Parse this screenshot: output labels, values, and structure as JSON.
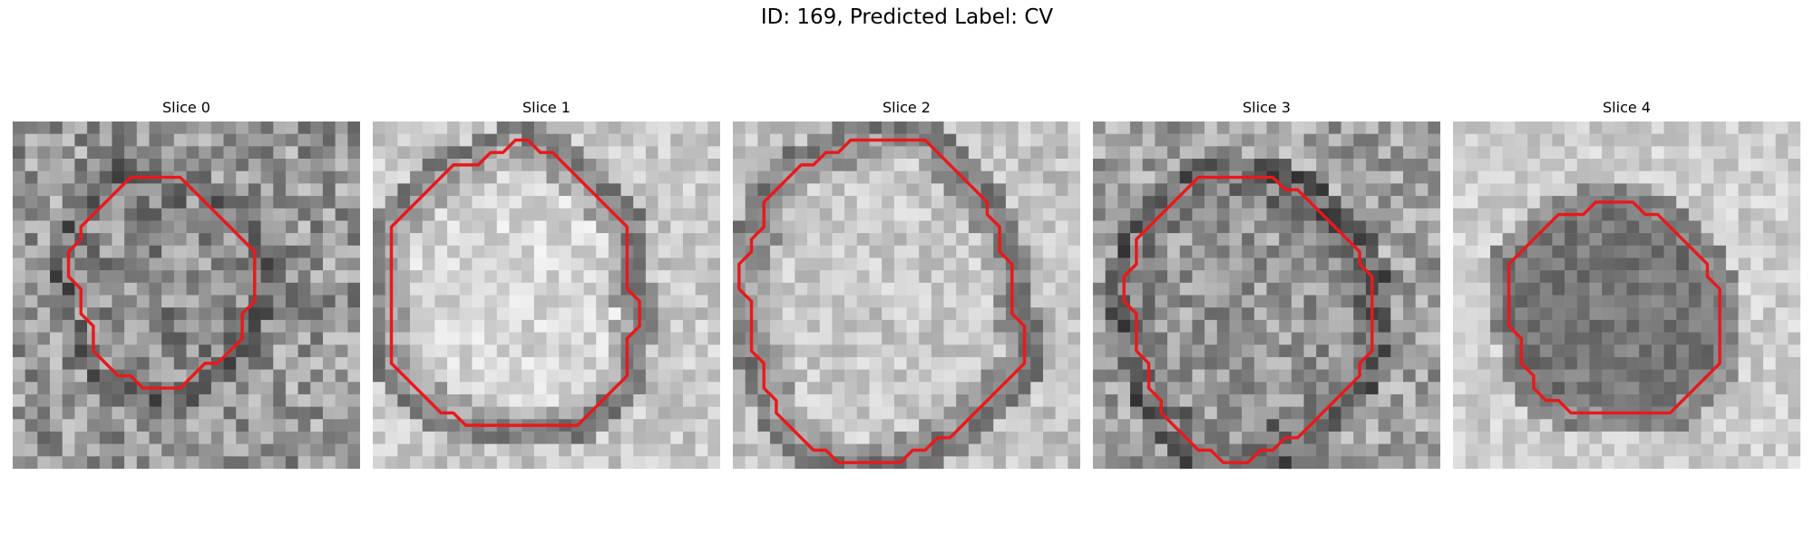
{
  "figure": {
    "title": "ID: 169, Predicted Label: CV"
  },
  "slices": [
    {
      "title": "Slice 0",
      "contour": [
        [
          10.5,
          4.5
        ],
        [
          13.5,
          4.5
        ],
        [
          14.5,
          5.5
        ],
        [
          15.5,
          6.5
        ],
        [
          16.5,
          7.5
        ],
        [
          17.5,
          8.5
        ],
        [
          18.5,
          9.5
        ],
        [
          19.5,
          10.5
        ],
        [
          19.5,
          13.5
        ],
        [
          19.5,
          14.5
        ],
        [
          18.5,
          15.5
        ],
        [
          18.5,
          17.5
        ],
        [
          17.5,
          18.5
        ],
        [
          16.5,
          19.5
        ],
        [
          15.5,
          19.5
        ],
        [
          14.5,
          20.5
        ],
        [
          13.5,
          21.5
        ],
        [
          10.5,
          21.5
        ],
        [
          9.5,
          20.5
        ],
        [
          8.5,
          20.5
        ],
        [
          7.5,
          19.5
        ],
        [
          6.5,
          18.5
        ],
        [
          6.5,
          16.5
        ],
        [
          5.5,
          15.5
        ],
        [
          5.5,
          14.5
        ],
        [
          5.5,
          13.5
        ],
        [
          4.5,
          12.5
        ],
        [
          4.5,
          10.5
        ],
        [
          5.5,
          9.5
        ],
        [
          5.5,
          8.5
        ],
        [
          6.5,
          7.5
        ],
        [
          7.5,
          6.5
        ],
        [
          8.5,
          5.5
        ],
        [
          9.5,
          4.5
        ]
      ]
    },
    {
      "title": "Slice 1",
      "contour": [
        [
          11.5,
          1.5
        ],
        [
          12.5,
          1.5
        ],
        [
          13.5,
          2.5
        ],
        [
          14.5,
          2.5
        ],
        [
          15.5,
          3.5
        ],
        [
          16.5,
          4.5
        ],
        [
          17.5,
          5.5
        ],
        [
          18.5,
          6.5
        ],
        [
          19.5,
          7.5
        ],
        [
          20.5,
          8.5
        ],
        [
          20.5,
          13.5
        ],
        [
          21.5,
          14.5
        ],
        [
          21.5,
          16.5
        ],
        [
          20.5,
          17.5
        ],
        [
          20.5,
          20.5
        ],
        [
          19.5,
          21.5
        ],
        [
          18.5,
          22.5
        ],
        [
          17.5,
          23.5
        ],
        [
          16.5,
          24.5
        ],
        [
          7.5,
          24.5
        ],
        [
          6.5,
          23.5
        ],
        [
          5.5,
          23.5
        ],
        [
          4.5,
          22.5
        ],
        [
          3.5,
          21.5
        ],
        [
          2.5,
          20.5
        ],
        [
          1.5,
          19.5
        ],
        [
          1.5,
          8.5
        ],
        [
          2.5,
          7.5
        ],
        [
          3.5,
          6.5
        ],
        [
          4.5,
          5.5
        ],
        [
          5.5,
          4.5
        ],
        [
          6.5,
          3.5
        ],
        [
          8.5,
          3.5
        ],
        [
          9.5,
          2.5
        ],
        [
          10.5,
          2.5
        ]
      ]
    },
    {
      "title": "Slice 2",
      "contour": [
        [
          9.5,
          1.5
        ],
        [
          15.5,
          1.5
        ],
        [
          16.5,
          2.5
        ],
        [
          17.5,
          3.5
        ],
        [
          18.5,
          4.5
        ],
        [
          19.5,
          5.5
        ],
        [
          20.5,
          6.5
        ],
        [
          20.5,
          7.5
        ],
        [
          21.5,
          8.5
        ],
        [
          21.5,
          10.5
        ],
        [
          22.5,
          11.5
        ],
        [
          22.5,
          15.5
        ],
        [
          23.5,
          16.5
        ],
        [
          23.5,
          19.5
        ],
        [
          22.5,
          20.5
        ],
        [
          21.5,
          21.5
        ],
        [
          20.5,
          22.5
        ],
        [
          19.5,
          23.5
        ],
        [
          18.5,
          24.5
        ],
        [
          17.5,
          25.5
        ],
        [
          16.5,
          25.5
        ],
        [
          15.5,
          26.5
        ],
        [
          14.5,
          26.5
        ],
        [
          13.5,
          27.5
        ],
        [
          8.5,
          27.5
        ],
        [
          7.5,
          26.5
        ],
        [
          6.5,
          26.5
        ],
        [
          5.5,
          25.5
        ],
        [
          4.5,
          24.5
        ],
        [
          3.5,
          23.5
        ],
        [
          3.5,
          22.5
        ],
        [
          2.5,
          21.5
        ],
        [
          2.5,
          19.5
        ],
        [
          1.5,
          18.5
        ],
        [
          1.5,
          15.5
        ],
        [
          1.5,
          14.5
        ],
        [
          0.5,
          13.5
        ],
        [
          0.5,
          11.5
        ],
        [
          1.5,
          10.5
        ],
        [
          1.5,
          9.5
        ],
        [
          2.5,
          8.5
        ],
        [
          2.5,
          6.5
        ],
        [
          3.5,
          5.5
        ],
        [
          4.5,
          4.5
        ],
        [
          5.5,
          3.5
        ],
        [
          6.5,
          3.5
        ],
        [
          7.5,
          2.5
        ],
        [
          8.5,
          2.5
        ]
      ]
    },
    {
      "title": "Slice 3",
      "contour": [
        [
          8.5,
          4.5
        ],
        [
          14.5,
          4.5
        ],
        [
          15.5,
          5.5
        ],
        [
          16.5,
          5.5
        ],
        [
          17.5,
          6.5
        ],
        [
          18.5,
          7.5
        ],
        [
          19.5,
          8.5
        ],
        [
          20.5,
          9.5
        ],
        [
          21.5,
          10.5
        ],
        [
          21.5,
          11.5
        ],
        [
          22.5,
          12.5
        ],
        [
          22.5,
          18.5
        ],
        [
          21.5,
          19.5
        ],
        [
          21.5,
          20.5
        ],
        [
          20.5,
          21.5
        ],
        [
          19.5,
          22.5
        ],
        [
          18.5,
          23.5
        ],
        [
          17.5,
          24.5
        ],
        [
          16.5,
          25.5
        ],
        [
          15.5,
          25.5
        ],
        [
          14.5,
          26.5
        ],
        [
          13.5,
          26.5
        ],
        [
          12.5,
          27.5
        ],
        [
          10.5,
          27.5
        ],
        [
          9.5,
          26.5
        ],
        [
          8.5,
          26.5
        ],
        [
          7.5,
          25.5
        ],
        [
          6.5,
          24.5
        ],
        [
          5.5,
          23.5
        ],
        [
          5.5,
          22.5
        ],
        [
          4.5,
          21.5
        ],
        [
          4.5,
          19.5
        ],
        [
          3.5,
          18.5
        ],
        [
          3.5,
          16.5
        ],
        [
          3.5,
          15.5
        ],
        [
          2.5,
          14.5
        ],
        [
          2.5,
          12.5
        ],
        [
          3.5,
          11.5
        ],
        [
          3.5,
          9.5
        ],
        [
          4.5,
          8.5
        ],
        [
          5.5,
          7.5
        ],
        [
          6.5,
          6.5
        ],
        [
          7.5,
          5.5
        ]
      ]
    },
    {
      "title": "Slice 4",
      "contour": [
        [
          12.5,
          6.5
        ],
        [
          14.5,
          6.5
        ],
        [
          15.5,
          7.5
        ],
        [
          16.5,
          7.5
        ],
        [
          17.5,
          8.5
        ],
        [
          18.5,
          9.5
        ],
        [
          19.5,
          10.5
        ],
        [
          20.5,
          11.5
        ],
        [
          20.5,
          12.5
        ],
        [
          21.5,
          13.5
        ],
        [
          21.5,
          19.5
        ],
        [
          20.5,
          20.5
        ],
        [
          19.5,
          21.5
        ],
        [
          18.5,
          22.5
        ],
        [
          17.5,
          23.5
        ],
        [
          9.5,
          23.5
        ],
        [
          8.5,
          22.5
        ],
        [
          7.5,
          22.5
        ],
        [
          6.5,
          21.5
        ],
        [
          6.5,
          20.5
        ],
        [
          5.5,
          19.5
        ],
        [
          5.5,
          17.5
        ],
        [
          4.5,
          16.5
        ],
        [
          4.5,
          11.5
        ],
        [
          5.5,
          10.5
        ],
        [
          6.5,
          9.5
        ],
        [
          7.5,
          8.5
        ],
        [
          8.5,
          7.5
        ],
        [
          10.5,
          7.5
        ],
        [
          11.5,
          6.5
        ]
      ]
    }
  ]
}
